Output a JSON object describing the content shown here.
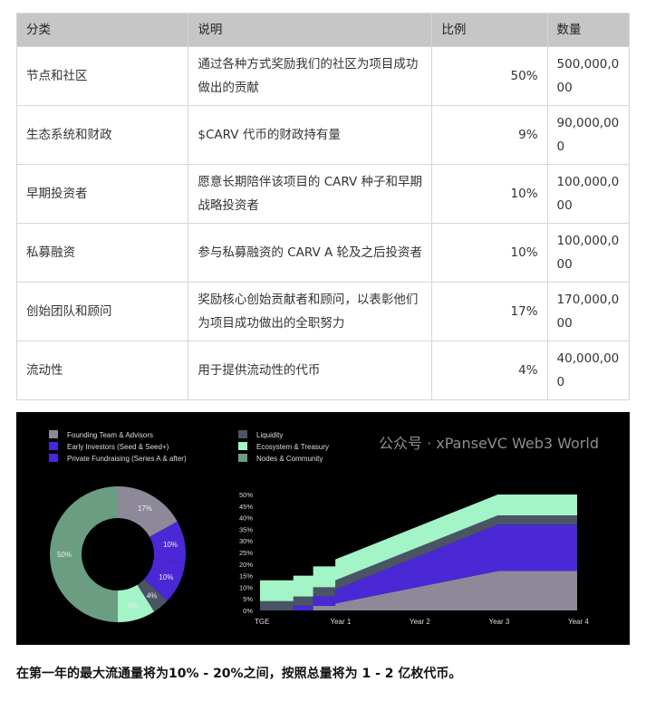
{
  "table": {
    "headers": [
      "分类",
      "说明",
      "比例",
      "数量"
    ],
    "rows": [
      [
        "节点和社区",
        "通过各种方式奖励我们的社区为项目成功做出的贡献",
        "50%",
        "500,000,000"
      ],
      [
        "生态系统和财政",
        "$CARV 代币的财政持有量",
        "9%",
        "90,000,000"
      ],
      [
        "早期投资者",
        "愿意长期陪伴该项目的 CARV 种子和早期战略投资者",
        "10%",
        "100,000,000"
      ],
      [
        "私募融资",
        "参与私募融资的 CARV A 轮及之后投资者",
        "10%",
        "100,000,000"
      ],
      [
        "创始团队和顾问",
        "奖励核心创始贡献者和顾问，以表彰他们为项目成功做出的全职努力",
        "17%",
        "170,000,000"
      ],
      [
        "流动性",
        "用于提供流动性的代币",
        "4%",
        "40,000,000"
      ]
    ]
  },
  "chart_data": [
    {
      "type": "pie",
      "style": "donut",
      "slices": [
        {
          "name": "Founding Team & Advisors",
          "value": 17,
          "label": "17%",
          "color": "#8d8998"
        },
        {
          "name": "Early Investors (Seed & Seed+)",
          "value": 10,
          "label": "10%",
          "color": "#4a28d6"
        },
        {
          "name": "Private Fundraising (Series A & after)",
          "value": 10,
          "label": "10%",
          "color": "#4a28d6"
        },
        {
          "name": "Liquidity",
          "value": 4,
          "label": "4%",
          "color": "#4a5465"
        },
        {
          "name": "Ecosystem & Treasury",
          "value": 9,
          "label": "9%",
          "color": "#a3f5c7"
        },
        {
          "name": "Nodes & Community",
          "value": 50,
          "label": "50%",
          "color": "#6b9d82"
        }
      ],
      "legend": {
        "placement": "top-left",
        "entries": [
          {
            "name": "Founding Team & Advisors",
            "color": "#8d8998"
          },
          {
            "name": "Early Investors (Seed & Seed+)",
            "color": "#4a28d6"
          },
          {
            "name": "Private Fundraising (Series A & after)",
            "color": "#4a28d6"
          },
          {
            "name": "Liquidity",
            "color": "#4a5465"
          },
          {
            "name": "Ecosystem & Treasury",
            "color": "#a3f5c7"
          },
          {
            "name": "Nodes & Community",
            "color": "#6b9d82"
          }
        ]
      }
    },
    {
      "type": "area",
      "stacked": true,
      "x": [
        0,
        0.42,
        0.42,
        0.67,
        0.67,
        0.95,
        0.95,
        3,
        4
      ],
      "xticks": [
        0,
        1,
        2,
        3,
        4
      ],
      "xticklabels": [
        "TGE",
        "Year 1",
        "Year 2",
        "Year 3",
        "Year 4"
      ],
      "yticks": [
        0,
        5,
        10,
        15,
        20,
        25,
        30,
        35,
        40,
        45,
        50
      ],
      "yticklabels": [
        "0%",
        "5%",
        "10%",
        "15%",
        "20%",
        "25%",
        "30%",
        "35%",
        "40%",
        "45%",
        "50%"
      ],
      "xlim": [
        0,
        4
      ],
      "ylim": [
        0,
        50
      ],
      "grid": false,
      "series": [
        {
          "color": "#8d8998",
          "values": [
            0,
            0,
            0,
            0,
            2,
            2,
            3,
            17,
            17
          ]
        },
        {
          "color": "#4a28d6",
          "values": [
            0,
            0,
            2,
            2,
            4,
            4,
            6,
            20,
            20
          ]
        },
        {
          "color": "#4a5465",
          "values": [
            4,
            4,
            4,
            4,
            4,
            4,
            4,
            4,
            4
          ]
        },
        {
          "color": "#a3f5c7",
          "values": [
            9,
            9,
            9,
            9,
            9,
            9,
            9,
            9,
            9
          ]
        }
      ]
    }
  ],
  "watermark": "公众号 · xPanseVC Web3 World",
  "caption": "在第一年的最大流通量将为10% - 20%之间，按照总量将为 1 - 2 亿枚代币。"
}
